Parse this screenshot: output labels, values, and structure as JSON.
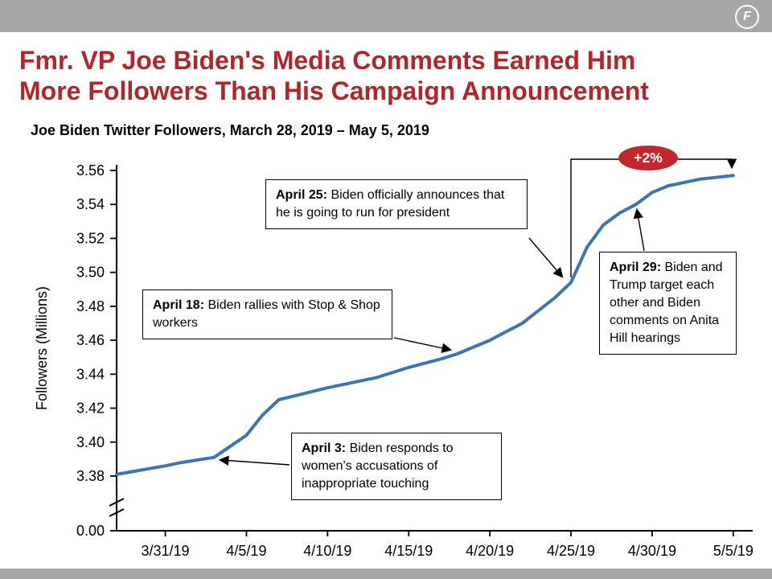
{
  "header": {
    "logo_letter": "F"
  },
  "title": {
    "line1": "Fmr. VP Joe Biden's Media Comments Earned Him",
    "line2": "More Followers Than His Campaign Announcement"
  },
  "subtitle": "Joe Biden Twitter Followers, March 28, 2019 – May 5,  2019",
  "chart_data": {
    "type": "line",
    "title": "Joe Biden Twitter Followers, March 28, 2019 – May 5, 2019",
    "xlabel": "",
    "ylabel": "Followers (Millions)",
    "line_color": "#3d76ae",
    "grid": false,
    "legend": "none",
    "axis_break": true,
    "y_visible_range": [
      3.38,
      3.56
    ],
    "x_dates": [
      "3/28/19",
      "3/31/19",
      "4/1/19",
      "4/3/19",
      "4/5/19",
      "4/6/19",
      "4/7/19",
      "4/10/19",
      "4/13/19",
      "4/15/19",
      "4/17/19",
      "4/18/19",
      "4/20/19",
      "4/22/19",
      "4/24/19",
      "4/25/19",
      "4/26/19",
      "4/27/19",
      "4/28/19",
      "4/29/19",
      "4/30/19",
      "5/1/19",
      "5/2/19",
      "5/3/19",
      "5/5/19"
    ],
    "x_days": [
      0,
      3,
      4,
      6,
      8,
      9,
      10,
      13,
      16,
      18,
      20,
      21,
      23,
      25,
      27,
      28,
      29,
      30,
      31,
      32,
      33,
      34,
      35,
      36,
      38
    ],
    "values": [
      3.381,
      3.386,
      3.388,
      3.391,
      3.404,
      3.416,
      3.425,
      3.432,
      3.438,
      3.444,
      3.449,
      3.452,
      3.46,
      3.47,
      3.485,
      3.494,
      3.515,
      3.528,
      3.535,
      3.54,
      3.547,
      3.551,
      3.553,
      3.555,
      3.557
    ],
    "x_ticks": [
      {
        "label": "3/31/19",
        "day": 3
      },
      {
        "label": "4/5/19",
        "day": 8
      },
      {
        "label": "4/10/19",
        "day": 13
      },
      {
        "label": "4/15/19",
        "day": 18
      },
      {
        "label": "4/20/19",
        "day": 23
      },
      {
        "label": "4/25/19",
        "day": 28
      },
      {
        "label": "4/30/19",
        "day": 33
      },
      {
        "label": "5/5/19",
        "day": 38
      }
    ],
    "y_ticks": [
      {
        "label": "0.00",
        "value": 0
      },
      {
        "label": "3.38",
        "value": 3.38
      },
      {
        "label": "3.40",
        "value": 3.4
      },
      {
        "label": "3.42",
        "value": 3.42
      },
      {
        "label": "3.44",
        "value": 3.44
      },
      {
        "label": "3.46",
        "value": 3.46
      },
      {
        "label": "3.48",
        "value": 3.48
      },
      {
        "label": "3.50",
        "value": 3.5
      },
      {
        "label": "3.52",
        "value": 3.52
      },
      {
        "label": "3.54",
        "value": 3.54
      },
      {
        "label": "3.56",
        "value": 3.56
      }
    ],
    "badge": {
      "label": "+2%",
      "color": "#c1272d"
    },
    "annotations": [
      {
        "date": "April 3:",
        "text": " Biden responds to women's accusations of inappropriate touching"
      },
      {
        "date": "April 18:",
        "text": " Biden rallies with Stop & Shop workers"
      },
      {
        "date": "April 25:",
        "text": " Biden officially announces that he is going to run for president"
      },
      {
        "date": "April 29:",
        "text": " Biden and Trump target each other and Biden comments on Anita Hill hearings"
      }
    ]
  }
}
